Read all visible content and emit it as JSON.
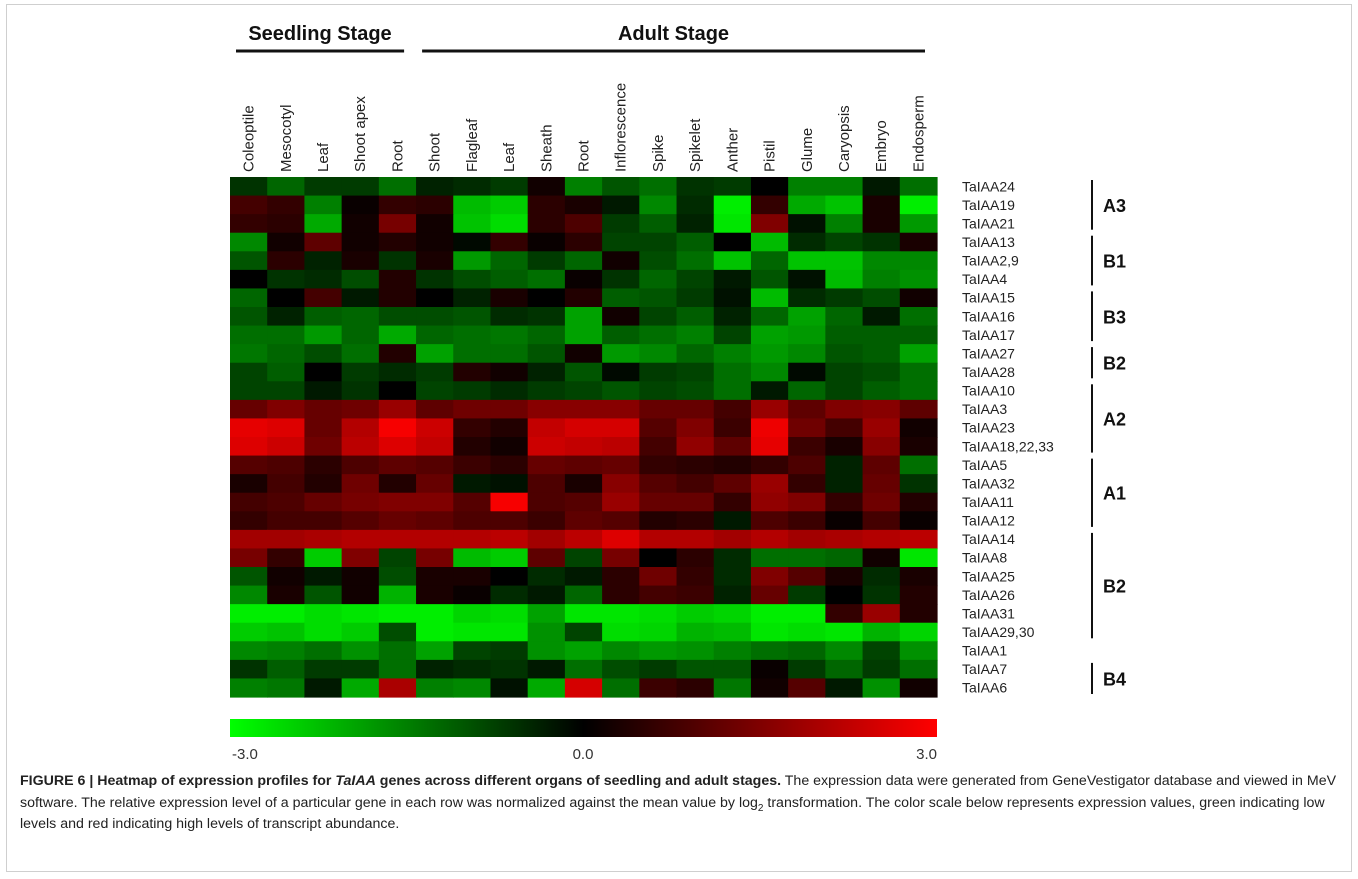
{
  "chart_data": {
    "type": "heatmap",
    "stages": [
      {
        "name": "Seedling Stage",
        "start": 0,
        "end": 4
      },
      {
        "name": "Adult Stage",
        "start": 5,
        "end": 18
      }
    ],
    "columns": [
      "Coleoptile",
      "Mesocotyl",
      "Leaf",
      "Shoot apex",
      "Root",
      "Shoot",
      "Flagleaf",
      "Leaf",
      "Sheath",
      "Root",
      "Inflorescence",
      "Spike",
      "Spikelet",
      "Anther",
      "Pistil",
      "Glume",
      "Caryopsis",
      "Embryo",
      "Endosperm"
    ],
    "rows": [
      "TaIAA24",
      "TaIAA19",
      "TaIAA21",
      "TaIAA13",
      "TaIAA2,9",
      "TaIAA4",
      "TaIAA15",
      "TaIAA16",
      "TaIAA17",
      "TaIAA27",
      "TaIAA28",
      "TaIAA10",
      "TaIAA3",
      "TaIAA23",
      "TaIAA18,22,33",
      "TaIAA5",
      "TaIAA32",
      "TaIAA11",
      "TaIAA12",
      "TaIAA14",
      "TaIAA8",
      "TaIAA25",
      "TaIAA26",
      "TaIAA31",
      "TaIAA29,30",
      "TaIAA1",
      "TaIAA7",
      "TaIAA6"
    ],
    "groups": [
      {
        "name": "A3",
        "start": 0,
        "end": 2
      },
      {
        "name": "B1",
        "start": 3,
        "end": 5
      },
      {
        "name": "B3",
        "start": 6,
        "end": 8
      },
      {
        "name": "B2",
        "start": 9,
        "end": 10
      },
      {
        "name": "A2",
        "start": 11,
        "end": 14
      },
      {
        "name": "A1",
        "start": 15,
        "end": 18
      },
      {
        "name": "B2",
        "start": 19,
        "end": 24
      },
      {
        "name": "B4",
        "start": 26,
        "end": 27
      }
    ],
    "scale": {
      "min": -3.0,
      "mid": 0.0,
      "max": 3.0,
      "min_label": "-3.0",
      "mid_label": "0.0",
      "max_label": "3.0",
      "low_color": "#00ff00",
      "mid_color": "#000000",
      "high_color": "#ff0000"
    },
    "values": [
      [
        -0.6,
        -1.2,
        -0.7,
        -0.7,
        -1.3,
        -0.4,
        -0.5,
        -0.7,
        0.2,
        -1.5,
        -1.0,
        -1.3,
        -0.6,
        -0.7,
        0.0,
        -1.5,
        -1.5,
        -0.3,
        -1.3
      ],
      [
        0.8,
        0.6,
        -1.5,
        0.1,
        0.6,
        0.5,
        -2.2,
        -2.4,
        0.5,
        0.3,
        -0.3,
        -1.6,
        -0.5,
        -2.8,
        0.6,
        -2.0,
        -2.3,
        0.3,
        -2.8
      ],
      [
        0.6,
        0.5,
        -2.0,
        0.2,
        1.4,
        0.2,
        -2.3,
        -2.6,
        0.5,
        0.9,
        -0.7,
        -1.1,
        -0.4,
        -2.7,
        1.5,
        -0.2,
        -1.5,
        0.3,
        -1.8
      ],
      [
        -1.6,
        0.2,
        1.1,
        0.2,
        0.4,
        0.2,
        -0.1,
        0.6,
        0.1,
        0.5,
        -0.8,
        -0.8,
        -1.1,
        0.0,
        -2.2,
        -0.5,
        -0.8,
        -0.6,
        0.3
      ],
      [
        -1.0,
        0.5,
        -0.4,
        0.3,
        -0.6,
        0.3,
        -1.8,
        -1.2,
        -0.7,
        -1.2,
        0.2,
        -0.9,
        -1.3,
        -2.3,
        -1.2,
        -2.3,
        -2.3,
        -1.6,
        -1.6
      ],
      [
        0.0,
        -0.6,
        -0.5,
        -0.9,
        0.4,
        -0.6,
        -0.9,
        -1.1,
        -1.3,
        0.1,
        -0.6,
        -1.2,
        -0.8,
        -0.3,
        -1.0,
        -0.2,
        -2.2,
        -1.5,
        -1.7
      ],
      [
        -1.2,
        0.0,
        0.8,
        -0.3,
        0.4,
        0.0,
        -0.4,
        0.3,
        0.0,
        0.4,
        -1.1,
        -1.0,
        -0.7,
        -0.2,
        -2.2,
        -0.5,
        -0.7,
        -0.9,
        0.2
      ],
      [
        -1.0,
        -0.4,
        -1.1,
        -1.2,
        -0.9,
        -0.9,
        -1.0,
        -0.5,
        -0.6,
        -1.9,
        0.2,
        -0.8,
        -1.1,
        -0.4,
        -1.2,
        -1.9,
        -1.2,
        -0.3,
        -1.3
      ],
      [
        -1.3,
        -1.3,
        -1.8,
        -1.2,
        -2.0,
        -1.2,
        -1.3,
        -1.4,
        -1.2,
        -1.9,
        -1.1,
        -1.3,
        -1.5,
        -0.8,
        -1.9,
        -1.8,
        -1.1,
        -1.1,
        -1.1
      ],
      [
        -1.4,
        -1.2,
        -0.9,
        -1.3,
        0.4,
        -1.9,
        -1.3,
        -1.3,
        -1.0,
        0.2,
        -1.8,
        -1.6,
        -1.2,
        -1.5,
        -1.8,
        -1.6,
        -1.0,
        -1.1,
        -1.9
      ],
      [
        -0.8,
        -1.1,
        0.0,
        -0.7,
        -0.5,
        -0.7,
        0.4,
        0.2,
        -0.4,
        -1.0,
        -0.1,
        -0.7,
        -0.8,
        -1.3,
        -1.6,
        -0.1,
        -0.8,
        -0.9,
        -1.3
      ],
      [
        -0.8,
        -0.8,
        -0.3,
        -0.6,
        0.0,
        -0.8,
        -0.7,
        -0.5,
        -0.7,
        -0.8,
        -1.0,
        -0.8,
        -0.9,
        -1.3,
        -0.3,
        -1.2,
        -0.8,
        -1.1,
        -1.3
      ],
      [
        1.2,
        1.5,
        1.2,
        1.3,
        1.8,
        1.1,
        1.3,
        1.3,
        1.6,
        1.6,
        1.6,
        1.2,
        1.2,
        0.8,
        1.8,
        1.1,
        1.5,
        1.6,
        1.1
      ],
      [
        2.7,
        2.6,
        1.2,
        2.1,
        2.9,
        2.4,
        0.6,
        0.4,
        2.3,
        2.5,
        2.5,
        1.0,
        1.5,
        0.7,
        2.8,
        1.3,
        0.8,
        1.8,
        0.2
      ],
      [
        2.6,
        2.4,
        1.3,
        2.2,
        2.6,
        2.3,
        0.4,
        0.2,
        2.4,
        2.3,
        2.2,
        0.8,
        1.7,
        1.1,
        2.7,
        0.7,
        0.3,
        1.6,
        0.3
      ],
      [
        1.0,
        0.9,
        0.5,
        0.9,
        1.1,
        1.0,
        0.7,
        0.5,
        1.2,
        1.1,
        1.2,
        0.6,
        0.5,
        0.4,
        0.6,
        0.9,
        -0.4,
        1.1,
        -1.3
      ],
      [
        0.3,
        0.8,
        0.4,
        1.3,
        0.4,
        1.2,
        -0.3,
        -0.2,
        0.9,
        0.3,
        1.6,
        1.0,
        0.8,
        1.1,
        1.8,
        0.6,
        -0.4,
        1.2,
        -0.6
      ],
      [
        0.8,
        0.9,
        1.2,
        1.4,
        1.5,
        1.5,
        1.0,
        2.9,
        0.9,
        1.0,
        1.8,
        1.2,
        1.2,
        0.6,
        1.7,
        1.5,
        0.6,
        1.3,
        0.4
      ],
      [
        0.6,
        0.8,
        0.8,
        1.0,
        1.2,
        1.1,
        0.9,
        0.9,
        0.7,
        1.1,
        1.0,
        0.4,
        0.5,
        -0.3,
        0.9,
        0.7,
        0.1,
        0.8,
        0.1
      ],
      [
        1.9,
        1.9,
        2.0,
        2.1,
        2.1,
        2.1,
        2.1,
        2.2,
        1.9,
        2.2,
        2.6,
        2.1,
        2.1,
        1.9,
        2.1,
        1.9,
        2.0,
        2.1,
        2.2
      ],
      [
        1.4,
        0.6,
        -2.4,
        1.5,
        -0.8,
        1.4,
        -2.2,
        -2.4,
        1.1,
        -0.8,
        1.4,
        0.0,
        0.5,
        -0.5,
        -1.3,
        -1.3,
        -1.2,
        0.2,
        -2.7
      ],
      [
        -1.0,
        0.2,
        -0.3,
        0.2,
        -0.9,
        0.3,
        0.3,
        0.0,
        -0.5,
        -0.3,
        0.5,
        1.3,
        0.6,
        -0.5,
        1.5,
        1.0,
        0.3,
        -0.5,
        0.3
      ],
      [
        -1.6,
        0.3,
        -1.0,
        0.2,
        -2.1,
        0.3,
        0.1,
        -0.5,
        -0.3,
        -1.2,
        0.5,
        0.8,
        0.7,
        -0.4,
        1.2,
        -0.7,
        0.0,
        -0.6,
        0.4
      ],
      [
        -2.8,
        -2.8,
        -2.6,
        -2.7,
        -2.8,
        -2.8,
        -2.5,
        -2.6,
        -1.9,
        -2.7,
        -2.7,
        -2.6,
        -2.4,
        -2.5,
        -2.8,
        -2.8,
        0.6,
        1.8,
        0.4
      ],
      [
        -2.4,
        -2.3,
        -2.6,
        -2.4,
        -0.9,
        -2.8,
        -2.7,
        -2.7,
        -1.7,
        -0.8,
        -2.6,
        -2.5,
        -2.1,
        -2.2,
        -2.7,
        -2.6,
        -2.7,
        -2.1,
        -2.5
      ],
      [
        -1.6,
        -1.5,
        -1.3,
        -1.7,
        -1.3,
        -1.9,
        -0.8,
        -0.7,
        -1.7,
        -1.9,
        -1.6,
        -1.8,
        -1.7,
        -1.5,
        -1.3,
        -1.2,
        -1.6,
        -0.8,
        -1.7
      ],
      [
        -0.6,
        -1.1,
        -0.7,
        -0.7,
        -1.3,
        -0.4,
        -0.5,
        -0.6,
        -0.3,
        -1.3,
        -0.9,
        -0.7,
        -1.0,
        -1.0,
        0.1,
        -0.7,
        -1.2,
        -0.7,
        -1.3
      ],
      [
        -1.5,
        -1.4,
        -0.3,
        -2.0,
        2.0,
        -1.5,
        -1.6,
        -0.2,
        -2.0,
        2.5,
        -1.3,
        0.7,
        0.5,
        -1.4,
        0.2,
        1.0,
        -0.3,
        -1.7,
        0.2
      ]
    ]
  },
  "caption": {
    "figure": "FIGURE 6 | Heatmap of expression profiles for ",
    "italic": "TaIAA",
    "title_rest": " genes across different organs of seedling and adult stages.",
    "text1": " The expression data were generated from GeneVestigator database and viewed in MeV software. The relative expression level of a particular gene in each row was normalized against the mean value by log",
    "sub": "2",
    "text2": " transformation. The color scale below represents expression values, green indicating low levels and red indicating high levels of transcript abundance."
  }
}
